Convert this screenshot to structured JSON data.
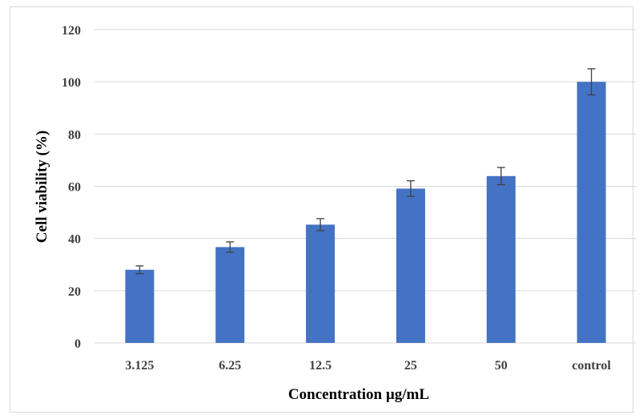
{
  "chart_data": {
    "type": "bar",
    "categories": [
      "3.125",
      "6.25",
      "12.5",
      "25",
      "50",
      "control"
    ],
    "values": [
      28,
      36.7,
      45.3,
      59.1,
      63.9,
      100
    ],
    "error": [
      1.5,
      2.0,
      2.3,
      3.0,
      3.3,
      5.0
    ],
    "xlabel": "Concentration µg/mL",
    "ylabel": "Cell viability (%)",
    "ylim": [
      0,
      120
    ],
    "yticks": [
      0,
      20,
      40,
      60,
      80,
      100,
      120
    ],
    "grid": "horizontal",
    "bar_color": "#4472c4",
    "error_color": "#404040",
    "gridline_color": "#d9d9d9"
  }
}
